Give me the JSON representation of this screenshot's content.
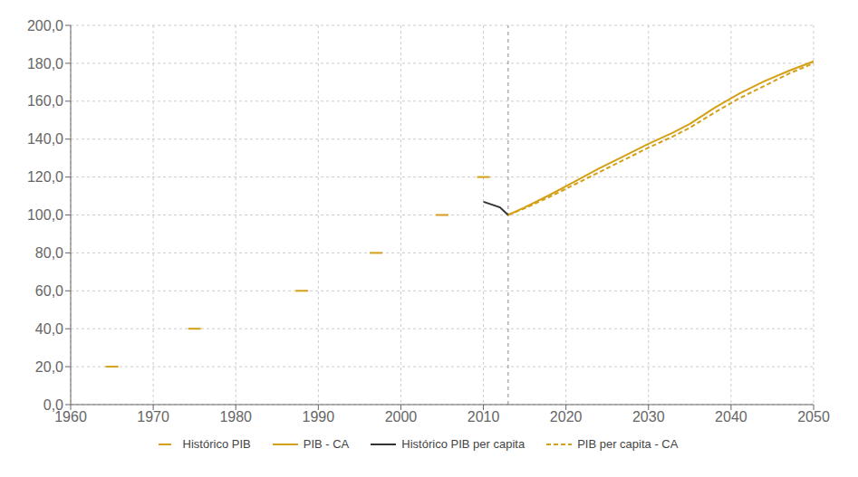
{
  "chart_data": {
    "type": "line",
    "xlim": [
      1960,
      2050
    ],
    "ylim": [
      0.0,
      200.0
    ],
    "xticks": [
      1960,
      1970,
      1980,
      1990,
      2000,
      2010,
      2020,
      2030,
      2040,
      2050
    ],
    "yticks": [
      {
        "value": 0.0,
        "label": "0,0"
      },
      {
        "value": 20.0,
        "label": "20,0"
      },
      {
        "value": 40.0,
        "label": "40,0"
      },
      {
        "value": 60.0,
        "label": "60,0"
      },
      {
        "value": 80.0,
        "label": "80,0"
      },
      {
        "value": 100.0,
        "label": "100,0"
      },
      {
        "value": 120.0,
        "label": "120,0"
      },
      {
        "value": 140.0,
        "label": "140,0"
      },
      {
        "value": 160.0,
        "label": "160,0"
      },
      {
        "value": 180.0,
        "label": "180,0"
      },
      {
        "value": 200.0,
        "label": "200,0"
      }
    ],
    "grid": true,
    "legend": "bottom",
    "vertical_line": {
      "x": 2013
    },
    "series": [
      {
        "name": "Histórico PIB",
        "color": "#d4a017",
        "line_style": "none",
        "marker": "dash",
        "x": [
          1965,
          1975,
          1988,
          1997,
          2005,
          2010
        ],
        "values": [
          20.0,
          40.0,
          60.0,
          80.0,
          100.0,
          120.0
        ]
      },
      {
        "name": "PIB - CA",
        "color": "#d4a017",
        "line_style": "solid",
        "marker": "none",
        "x": [
          2013,
          2015,
          2018,
          2021,
          2024,
          2027,
          2030,
          2033,
          2035,
          2038,
          2041,
          2044,
          2047,
          2050
        ],
        "values": [
          100.0,
          104.0,
          110.5,
          117.5,
          124.5,
          131.0,
          137.5,
          143.5,
          148.0,
          156.5,
          164.0,
          170.5,
          176.0,
          181.0
        ]
      },
      {
        "name": "Histórico PIB per capita",
        "color": "#333333",
        "line_style": "solid",
        "marker": "none",
        "x": [
          2010,
          2012,
          2013
        ],
        "values": [
          107.0,
          104.0,
          100.0
        ]
      },
      {
        "name": "PIB per capita - CA",
        "color": "#d4a017",
        "line_style": "dashed",
        "marker": "none",
        "x": [
          2013,
          2015,
          2018,
          2021,
          2024,
          2027,
          2030,
          2033,
          2035,
          2038,
          2041,
          2044,
          2047,
          2050
        ],
        "values": [
          100.0,
          103.5,
          109.5,
          116.0,
          122.5,
          129.0,
          135.5,
          141.5,
          146.0,
          154.0,
          161.5,
          168.0,
          174.5,
          180.0
        ]
      }
    ]
  }
}
